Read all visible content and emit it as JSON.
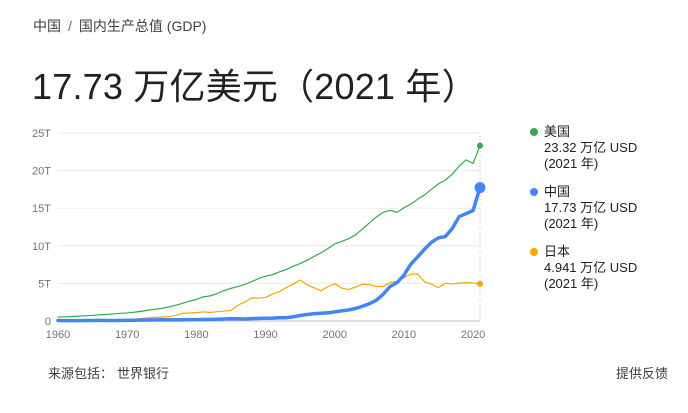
{
  "breadcrumb": {
    "country": "中国",
    "separator": "/",
    "indicator": "国内生产总值 (GDP)"
  },
  "headline": {
    "value": "17.73 万亿美元（2021 年）"
  },
  "legend": [
    {
      "name": "美国",
      "value": "23.32 万亿 USD",
      "year": "(2021 年)",
      "color": "#34a853"
    },
    {
      "name": "中国",
      "value": "17.73 万亿 USD",
      "year": "(2021 年)",
      "color": "#4285f4"
    },
    {
      "name": "日本",
      "value": "4.941 万亿 USD",
      "year": "(2021 年)",
      "color": "#f4a700"
    }
  ],
  "footer": {
    "source_label": "来源包括：",
    "source_name": "世界银行",
    "feedback": "提供反馈"
  },
  "chart_data": {
    "type": "line",
    "ylim": [
      0,
      25
    ],
    "xlim": [
      1960,
      2021
    ],
    "y_ticks": [
      0,
      5,
      10,
      15,
      20,
      25
    ],
    "y_tick_labels": [
      "0",
      "5T",
      "10T",
      "15T",
      "20T",
      "25T"
    ],
    "x_ticks": [
      1960,
      1970,
      1980,
      1990,
      2000,
      2010,
      2020
    ],
    "x_tick_labels": [
      "1960",
      "1970",
      "1980",
      "1990",
      "2000",
      "2010",
      "2020"
    ],
    "grid": true,
    "legend_position": "right",
    "series": [
      {
        "name": "美国",
        "color": "#34a853",
        "stroke": "thin",
        "points": [
          [
            1960,
            0.54
          ],
          [
            1961,
            0.56
          ],
          [
            1962,
            0.6
          ],
          [
            1963,
            0.64
          ],
          [
            1964,
            0.69
          ],
          [
            1965,
            0.74
          ],
          [
            1966,
            0.82
          ],
          [
            1967,
            0.86
          ],
          [
            1968,
            0.94
          ],
          [
            1969,
            1.02
          ],
          [
            1970,
            1.07
          ],
          [
            1971,
            1.16
          ],
          [
            1972,
            1.28
          ],
          [
            1973,
            1.43
          ],
          [
            1974,
            1.55
          ],
          [
            1975,
            1.68
          ],
          [
            1976,
            1.87
          ],
          [
            1977,
            2.08
          ],
          [
            1978,
            2.35
          ],
          [
            1979,
            2.63
          ],
          [
            1980,
            2.86
          ],
          [
            1981,
            3.21
          ],
          [
            1982,
            3.34
          ],
          [
            1983,
            3.63
          ],
          [
            1984,
            4.04
          ],
          [
            1985,
            4.34
          ],
          [
            1986,
            4.58
          ],
          [
            1987,
            4.86
          ],
          [
            1988,
            5.24
          ],
          [
            1989,
            5.64
          ],
          [
            1990,
            5.96
          ],
          [
            1991,
            6.16
          ],
          [
            1992,
            6.52
          ],
          [
            1993,
            6.86
          ],
          [
            1994,
            7.29
          ],
          [
            1995,
            7.64
          ],
          [
            1996,
            8.07
          ],
          [
            1997,
            8.58
          ],
          [
            1998,
            9.06
          ],
          [
            1999,
            9.63
          ],
          [
            2000,
            10.25
          ],
          [
            2001,
            10.58
          ],
          [
            2002,
            10.94
          ],
          [
            2003,
            11.46
          ],
          [
            2004,
            12.21
          ],
          [
            2005,
            13.04
          ],
          [
            2006,
            13.82
          ],
          [
            2007,
            14.45
          ],
          [
            2008,
            14.71
          ],
          [
            2009,
            14.45
          ],
          [
            2010,
            15.05
          ],
          [
            2011,
            15.54
          ],
          [
            2012,
            16.2
          ],
          [
            2013,
            16.78
          ],
          [
            2014,
            17.53
          ],
          [
            2015,
            18.24
          ],
          [
            2016,
            18.75
          ],
          [
            2017,
            19.54
          ],
          [
            2018,
            20.61
          ],
          [
            2019,
            21.43
          ],
          [
            2020,
            20.94
          ],
          [
            2021,
            23.32
          ]
        ]
      },
      {
        "name": "中国",
        "color": "#4285f4",
        "stroke": "thick",
        "points": [
          [
            1960,
            0.06
          ],
          [
            1961,
            0.05
          ],
          [
            1962,
            0.05
          ],
          [
            1963,
            0.05
          ],
          [
            1964,
            0.06
          ],
          [
            1965,
            0.07
          ],
          [
            1966,
            0.08
          ],
          [
            1967,
            0.07
          ],
          [
            1968,
            0.07
          ],
          [
            1969,
            0.08
          ],
          [
            1970,
            0.09
          ],
          [
            1971,
            0.1
          ],
          [
            1972,
            0.11
          ],
          [
            1973,
            0.14
          ],
          [
            1974,
            0.14
          ],
          [
            1975,
            0.16
          ],
          [
            1976,
            0.15
          ],
          [
            1977,
            0.17
          ],
          [
            1978,
            0.15
          ],
          [
            1979,
            0.18
          ],
          [
            1980,
            0.19
          ],
          [
            1981,
            0.2
          ],
          [
            1982,
            0.21
          ],
          [
            1983,
            0.23
          ],
          [
            1984,
            0.26
          ],
          [
            1985,
            0.31
          ],
          [
            1986,
            0.3
          ],
          [
            1987,
            0.27
          ],
          [
            1988,
            0.31
          ],
          [
            1989,
            0.35
          ],
          [
            1990,
            0.36
          ],
          [
            1991,
            0.38
          ],
          [
            1992,
            0.43
          ],
          [
            1993,
            0.44
          ],
          [
            1994,
            0.56
          ],
          [
            1995,
            0.73
          ],
          [
            1996,
            0.86
          ],
          [
            1997,
            0.96
          ],
          [
            1998,
            1.03
          ],
          [
            1999,
            1.09
          ],
          [
            2000,
            1.21
          ],
          [
            2001,
            1.34
          ],
          [
            2002,
            1.47
          ],
          [
            2003,
            1.66
          ],
          [
            2004,
            1.96
          ],
          [
            2005,
            2.29
          ],
          [
            2006,
            2.75
          ],
          [
            2007,
            3.55
          ],
          [
            2008,
            4.59
          ],
          [
            2009,
            5.1
          ],
          [
            2010,
            6.09
          ],
          [
            2011,
            7.55
          ],
          [
            2012,
            8.53
          ],
          [
            2013,
            9.57
          ],
          [
            2014,
            10.48
          ],
          [
            2015,
            11.06
          ],
          [
            2016,
            11.23
          ],
          [
            2017,
            12.31
          ],
          [
            2018,
            13.89
          ],
          [
            2019,
            14.28
          ],
          [
            2020,
            14.69
          ],
          [
            2021,
            17.73
          ]
        ]
      },
      {
        "name": "日本",
        "color": "#f4a700",
        "stroke": "thin",
        "points": [
          [
            1960,
            0.04
          ],
          [
            1961,
            0.05
          ],
          [
            1962,
            0.06
          ],
          [
            1963,
            0.07
          ],
          [
            1964,
            0.08
          ],
          [
            1965,
            0.09
          ],
          [
            1966,
            0.11
          ],
          [
            1967,
            0.12
          ],
          [
            1968,
            0.15
          ],
          [
            1969,
            0.17
          ],
          [
            1970,
            0.21
          ],
          [
            1971,
            0.24
          ],
          [
            1972,
            0.32
          ],
          [
            1973,
            0.43
          ],
          [
            1974,
            0.48
          ],
          [
            1975,
            0.52
          ],
          [
            1976,
            0.58
          ],
          [
            1977,
            0.72
          ],
          [
            1978,
            1.01
          ],
          [
            1979,
            1.06
          ],
          [
            1980,
            1.11
          ],
          [
            1981,
            1.22
          ],
          [
            1982,
            1.13
          ],
          [
            1983,
            1.24
          ],
          [
            1984,
            1.32
          ],
          [
            1985,
            1.4
          ],
          [
            1986,
            2.08
          ],
          [
            1987,
            2.53
          ],
          [
            1988,
            3.07
          ],
          [
            1989,
            3.05
          ],
          [
            1990,
            3.13
          ],
          [
            1991,
            3.58
          ],
          [
            1992,
            3.91
          ],
          [
            1993,
            4.45
          ],
          [
            1994,
            4.91
          ],
          [
            1995,
            5.45
          ],
          [
            1996,
            4.83
          ],
          [
            1997,
            4.41
          ],
          [
            1998,
            4.03
          ],
          [
            1999,
            4.56
          ],
          [
            2000,
            4.97
          ],
          [
            2001,
            4.37
          ],
          [
            2002,
            4.18
          ],
          [
            2003,
            4.52
          ],
          [
            2004,
            4.89
          ],
          [
            2005,
            4.83
          ],
          [
            2006,
            4.6
          ],
          [
            2007,
            4.58
          ],
          [
            2008,
            5.11
          ],
          [
            2009,
            5.29
          ],
          [
            2010,
            5.76
          ],
          [
            2011,
            6.23
          ],
          [
            2012,
            6.27
          ],
          [
            2013,
            5.21
          ],
          [
            2014,
            4.9
          ],
          [
            2015,
            4.44
          ],
          [
            2016,
            5.0
          ],
          [
            2017,
            4.93
          ],
          [
            2018,
            5.04
          ],
          [
            2019,
            5.12
          ],
          [
            2020,
            5.06
          ],
          [
            2021,
            4.941
          ]
        ]
      }
    ]
  }
}
